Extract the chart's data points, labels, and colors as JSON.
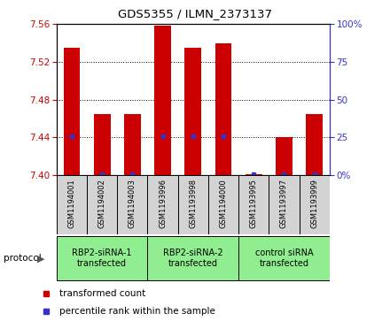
{
  "title": "GDS5355 / ILMN_2373137",
  "samples": [
    "GSM1194001",
    "GSM1194002",
    "GSM1194003",
    "GSM1193996",
    "GSM1193998",
    "GSM1194000",
    "GSM1193995",
    "GSM1193997",
    "GSM1193999"
  ],
  "red_values": [
    7.535,
    7.465,
    7.465,
    7.558,
    7.535,
    7.54,
    7.401,
    7.44,
    7.465
  ],
  "blue_values": [
    7.441,
    7.401,
    7.401,
    7.441,
    7.441,
    7.441,
    7.401,
    7.401,
    7.401
  ],
  "y_min": 7.4,
  "y_max": 7.56,
  "y_ticks": [
    7.4,
    7.44,
    7.48,
    7.52,
    7.56
  ],
  "right_y_ticks": [
    0,
    25,
    50,
    75,
    100
  ],
  "right_y_labels": [
    "0%",
    "25",
    "50",
    "75",
    "100%"
  ],
  "groups": [
    {
      "label": "RBP2-siRNA-1\ntransfected",
      "start": 0,
      "end": 3
    },
    {
      "label": "RBP2-siRNA-2\ntransfected",
      "start": 3,
      "end": 6
    },
    {
      "label": "control siRNA\ntransfected",
      "start": 6,
      "end": 9
    }
  ],
  "bar_color": "#cc0000",
  "dot_color": "#3333cc",
  "plot_bg": "#ffffff",
  "legend_red": "transformed count",
  "legend_blue": "percentile rank within the sample"
}
